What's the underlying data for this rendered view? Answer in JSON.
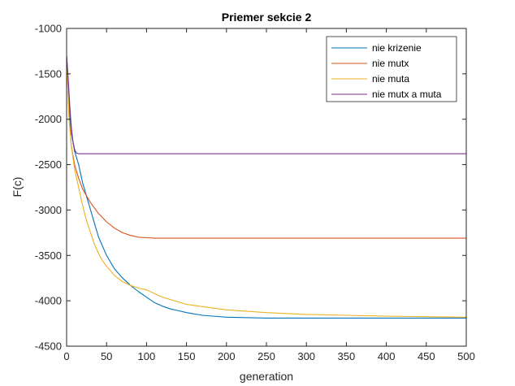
{
  "chart_data": {
    "type": "line",
    "title": "Priemer sekcie 2",
    "xlabel": "generation",
    "ylabel": "F(c)",
    "xlim": [
      0,
      500
    ],
    "ylim": [
      -4500,
      -1000
    ],
    "xticks": [
      0,
      50,
      100,
      150,
      200,
      250,
      300,
      350,
      400,
      450,
      500
    ],
    "yticks": [
      -1000,
      -1500,
      -2000,
      -2500,
      -3000,
      -3500,
      -4000,
      -4500
    ],
    "grid": false,
    "legend_position": "top-right",
    "series": [
      {
        "name": "nie krizenie",
        "color": "#0072BD",
        "x": [
          0,
          3,
          6,
          10,
          15,
          20,
          25,
          30,
          35,
          40,
          45,
          50,
          60,
          70,
          80,
          90,
          100,
          110,
          120,
          130,
          140,
          150,
          170,
          200,
          250,
          300,
          350,
          400,
          450,
          500
        ],
        "y": [
          -1300,
          -1850,
          -2150,
          -2350,
          -2500,
          -2700,
          -2850,
          -3000,
          -3150,
          -3300,
          -3400,
          -3500,
          -3650,
          -3750,
          -3830,
          -3900,
          -3960,
          -4020,
          -4060,
          -4090,
          -4110,
          -4130,
          -4160,
          -4180,
          -4190,
          -4190,
          -4190,
          -4190,
          -4190,
          -4190
        ]
      },
      {
        "name": "nie mutx",
        "color": "#D95319",
        "x": [
          0,
          3,
          6,
          10,
          15,
          20,
          30,
          40,
          50,
          60,
          70,
          80,
          90,
          100,
          110,
          120,
          150,
          200,
          300,
          400,
          500
        ],
        "y": [
          -1350,
          -1950,
          -2300,
          -2500,
          -2650,
          -2770,
          -2920,
          -3040,
          -3130,
          -3200,
          -3250,
          -3280,
          -3300,
          -3305,
          -3310,
          -3310,
          -3310,
          -3310,
          -3310,
          -3310,
          -3310
        ]
      },
      {
        "name": "nie muta",
        "color": "#EDB120",
        "x": [
          0,
          3,
          6,
          10,
          15,
          20,
          25,
          30,
          35,
          40,
          45,
          50,
          60,
          70,
          80,
          90,
          100,
          120,
          150,
          200,
          250,
          300,
          350,
          400,
          450,
          500
        ],
        "y": [
          -1300,
          -2000,
          -2300,
          -2550,
          -2750,
          -2950,
          -3120,
          -3250,
          -3380,
          -3480,
          -3560,
          -3620,
          -3720,
          -3790,
          -3830,
          -3860,
          -3880,
          -3960,
          -4040,
          -4100,
          -4130,
          -4150,
          -4160,
          -4170,
          -4175,
          -4180
        ]
      },
      {
        "name": "nie mutx a muta",
        "color": "#7E2F8E",
        "x": [
          0,
          2,
          4,
          6,
          8,
          10,
          12,
          15,
          20,
          50,
          100,
          200,
          300,
          400,
          500
        ],
        "y": [
          -1300,
          -1550,
          -1850,
          -2100,
          -2250,
          -2330,
          -2370,
          -2380,
          -2380,
          -2380,
          -2380,
          -2380,
          -2380,
          -2380,
          -2380
        ]
      }
    ]
  }
}
